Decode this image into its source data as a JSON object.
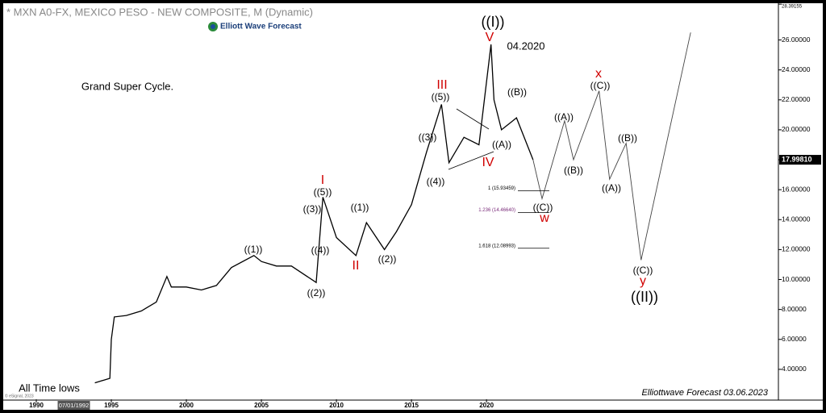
{
  "chart_data": {
    "type": "line",
    "title": "* MXN A0-FX, MEXICO PESO - NEW COMPOSITE, M (Dynamic)",
    "logo": "Elliott Wave Forecast",
    "footer": "Elliottwave Forecast 03.06.2023",
    "copyright": "© eSignal, 2023",
    "xlim": [
      1987.85,
      2039.45
    ],
    "ylim": [
      2.0,
      28.4
    ],
    "xticks": [
      1990,
      1995,
      2000,
      2005,
      2010,
      2015,
      2020
    ],
    "cursor_date": {
      "value": 1992.5,
      "label": "07/01/1992"
    },
    "yticks": [
      {
        "value": 4,
        "label": "4.00000"
      },
      {
        "value": 6,
        "label": "6.00000"
      },
      {
        "value": 8,
        "label": "8.00000"
      },
      {
        "value": 10,
        "label": "10.00000"
      },
      {
        "value": 12,
        "label": "12.00000"
      },
      {
        "value": 14,
        "label": "14.00000"
      },
      {
        "value": 16,
        "label": "16.00000"
      },
      {
        "value": 18,
        "label": "18.00000"
      },
      {
        "value": 20,
        "label": "20.00000"
      },
      {
        "value": 22,
        "label": "22.00000"
      },
      {
        "value": 24,
        "label": "24.00000"
      },
      {
        "value": 26,
        "label": "26.00000"
      }
    ],
    "last_price": {
      "value": 17.9981,
      "label": "17.99810"
    },
    "high_price": {
      "value": 28.39155,
      "label": "28.39155"
    },
    "series": [
      {
        "color": "#000000",
        "x": [
          1993.9,
          1994.9,
          1995.0,
          1995.2,
          1996,
          1997,
          1998,
          1998.7,
          1999,
          2000,
          2001,
          2002,
          2003,
          2004.5,
          2005,
          2006,
          2007,
          2008.65,
          2009.1,
          2010,
          2011.3,
          2012,
          2013.2,
          2014,
          2015,
          2016,
          2017.0,
          2017.5,
          2018.5,
          2019.5,
          2020.3,
          2020.5,
          2021,
          2022,
          2023.1
        ],
        "values": [
          3.1,
          3.4,
          6.0,
          7.5,
          7.6,
          7.9,
          8.5,
          10.2,
          9.5,
          9.5,
          9.3,
          9.6,
          10.8,
          11.6,
          11.2,
          10.9,
          10.9,
          9.8,
          15.5,
          12.8,
          11.6,
          13.8,
          12.0,
          13.2,
          15.0,
          18.5,
          21.7,
          17.8,
          19.5,
          19.0,
          25.7,
          22.0,
          20.0,
          20.8,
          18.0
        ]
      },
      {
        "color": "#444444",
        "x": [
          2023.1,
          2023.7,
          2025.2,
          2025.8,
          2027.5,
          2028.2,
          2029.3,
          2030.3,
          2033.6
        ],
        "values": [
          18.0,
          15.4,
          20.6,
          18.0,
          22.6,
          16.7,
          19.1,
          11.3,
          26.5
        ]
      }
    ],
    "fib_levels": [
      {
        "value": 15.93459,
        "label": "1 (15.93459)",
        "color": "#000000"
      },
      {
        "value": 14.4664,
        "label": "1.236 (14.46640)",
        "color": "#7a2c7a"
      },
      {
        "value": 12.08993,
        "label": "1.618 (12.08993)",
        "color": "#000000"
      }
    ],
    "annotations": [
      {
        "text": "((I))",
        "color": "#000000"
      },
      {
        "text": "V",
        "color": "#d00000"
      },
      {
        "text": "04.2020",
        "color": "#000000"
      },
      {
        "text": "Grand Super Cycle.",
        "color": "#000000"
      },
      {
        "text": "III",
        "color": "#d00000"
      },
      {
        "text": "((5))",
        "color": "#000000"
      },
      {
        "text": "((B))",
        "color": "#000000"
      },
      {
        "text": "x",
        "color": "#d00000"
      },
      {
        "text": "((C))",
        "color": "#000000"
      },
      {
        "text": "((A))",
        "color": "#000000"
      },
      {
        "text": "((3))",
        "color": "#000000"
      },
      {
        "text": "((A))",
        "color": "#000000"
      },
      {
        "text": "((B))",
        "color": "#000000"
      },
      {
        "text": "IV",
        "color": "#d00000"
      },
      {
        "text": "((4))",
        "color": "#000000"
      },
      {
        "text": "((B))",
        "color": "#000000"
      },
      {
        "text": "I",
        "color": "#d00000"
      },
      {
        "text": "((5))",
        "color": "#000000"
      },
      {
        "text": "((A))",
        "color": "#000000"
      },
      {
        "text": "((3))",
        "color": "#000000"
      },
      {
        "text": "((1))",
        "color": "#000000"
      },
      {
        "text": "((C))",
        "color": "#000000"
      },
      {
        "text": "w",
        "color": "#d00000"
      },
      {
        "text": "((4))",
        "color": "#000000"
      },
      {
        "text": "((1))",
        "color": "#000000"
      },
      {
        "text": "((2))",
        "color": "#000000"
      },
      {
        "text": "II",
        "color": "#d00000"
      },
      {
        "text": "((C))",
        "color": "#000000"
      },
      {
        "text": "y",
        "color": "#d00000"
      },
      {
        "text": "((2))",
        "color": "#000000"
      },
      {
        "text": "((II))",
        "color": "#000000"
      },
      {
        "text": "All Time lows",
        "color": "#000000"
      }
    ]
  }
}
